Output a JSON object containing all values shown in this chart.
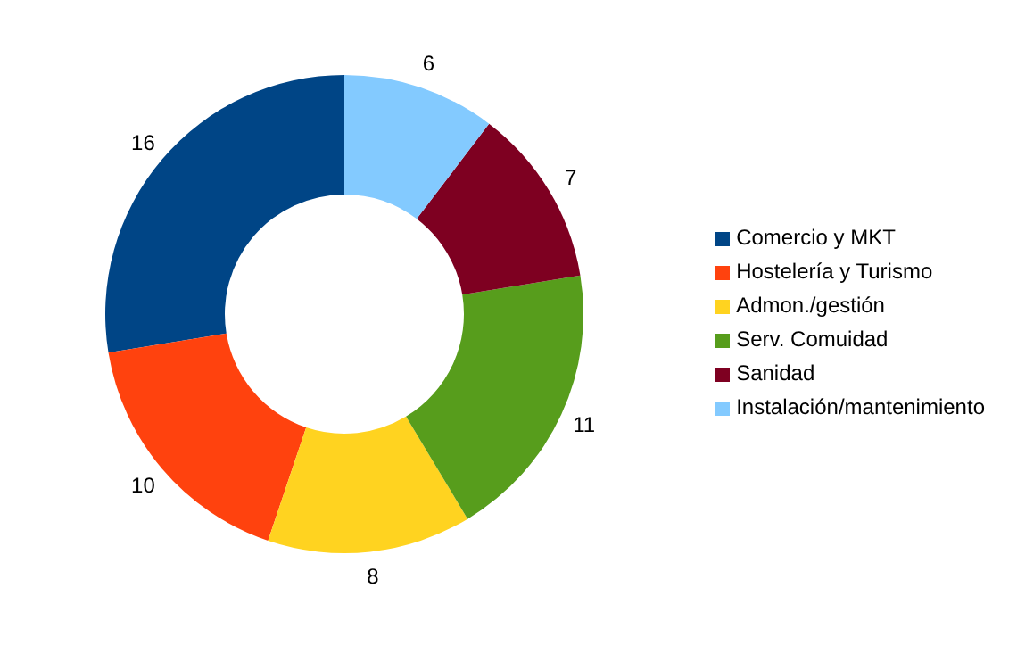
{
  "chart_data": {
    "type": "donut",
    "categories": [
      "Comercio y MKT",
      "Hostelería y Turismo",
      "Admon./gestión",
      "Serv. Comuidad",
      "Sanidad",
      "Instalación/mantenimiento"
    ],
    "values": [
      16,
      10,
      8,
      11,
      7,
      6
    ],
    "colors": [
      "#004586",
      "#ff420e",
      "#ffd320",
      "#579d1c",
      "#7e0021",
      "#83caff"
    ],
    "data_labels": true,
    "legend": "right"
  }
}
